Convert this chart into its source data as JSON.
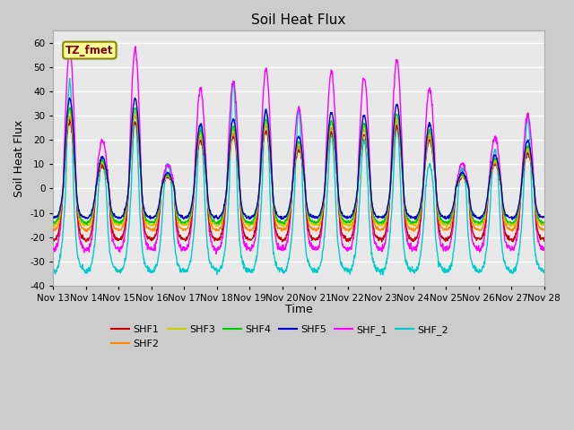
{
  "title": "Soil Heat Flux",
  "ylabel": "Soil Heat Flux",
  "xlabel": "Time",
  "ylim": [
    -40,
    65
  ],
  "yticks": [
    -40,
    -30,
    -20,
    -10,
    0,
    10,
    20,
    30,
    40,
    50,
    60
  ],
  "xtick_labels": [
    "Nov 13",
    "Nov 14",
    "Nov 15",
    "Nov 16",
    "Nov 17",
    "Nov 18",
    "Nov 19",
    "Nov 20",
    "Nov 21",
    "Nov 22",
    "Nov 23",
    "Nov 24",
    "Nov 25",
    "Nov 26",
    "Nov 27",
    "Nov 28"
  ],
  "series_colors": {
    "SHF1": "#cc0000",
    "SHF2": "#ff8800",
    "SHF3": "#cccc00",
    "SHF4": "#00cc00",
    "SHF5": "#0000cc",
    "SHF_1": "#ff00ff",
    "SHF_2": "#00cccc"
  },
  "legend_box_color": "#ffff99",
  "legend_box_edge": "#888800",
  "legend_box_text": "TZ_fmet",
  "bg_color": "#e8e8e8",
  "grid_color": "#ffffff",
  "linewidth": 1.0,
  "day_peaks_shf_1": [
    57,
    20,
    57,
    10,
    41,
    44,
    49,
    33,
    48,
    46,
    53,
    41,
    10,
    21,
    30
  ],
  "day_peaks_shf_2": [
    44,
    11,
    28,
    10,
    25,
    44,
    33,
    32,
    22,
    20,
    25,
    10,
    8,
    16,
    30
  ],
  "shf5_night": -12,
  "shf4_night": -14,
  "shf3_night": -15,
  "shf2_night": -17,
  "shf1_night": -21,
  "shf_1_night": -25,
  "shf_2_night": -34
}
